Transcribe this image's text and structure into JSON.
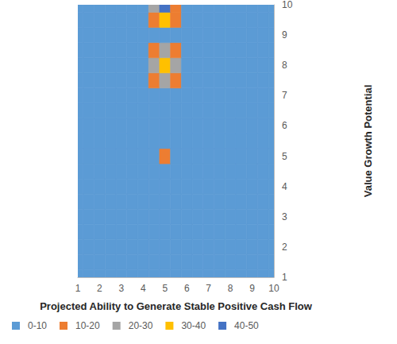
{
  "chart_data": {
    "type": "contour",
    "x_label": "Projected Ability to Generate Stable Positive Cash Flow",
    "y_label": "Value Growth Potential",
    "x": [
      1,
      1.5,
      2,
      2.5,
      3,
      3.5,
      4,
      4.5,
      5,
      5.5,
      6,
      6.5,
      7,
      7.5,
      8,
      8.5,
      9,
      9.5,
      10
    ],
    "y": [
      1,
      1.5,
      2,
      2.5,
      3,
      3.5,
      4,
      4.5,
      5,
      5.5,
      6,
      6.5,
      7,
      7.5,
      8,
      8.5,
      9,
      9.5,
      10
    ],
    "z": [
      [
        0,
        0,
        0,
        0,
        0,
        0,
        0,
        0,
        0,
        0,
        0,
        0,
        0,
        0,
        0,
        0,
        0,
        0,
        0
      ],
      [
        0,
        0,
        0,
        0,
        0,
        0,
        0,
        0,
        0,
        0,
        0,
        0,
        0,
        0,
        0,
        0,
        0,
        0,
        0
      ],
      [
        0,
        0,
        0,
        0,
        0,
        0,
        0,
        0,
        0,
        0,
        0,
        0,
        0,
        0,
        0,
        0,
        0,
        0,
        0
      ],
      [
        0,
        0,
        0,
        0,
        0,
        0,
        0,
        0,
        0,
        0,
        0,
        0,
        0,
        0,
        0,
        0,
        0,
        0,
        0
      ],
      [
        0,
        0,
        0,
        0,
        0,
        0,
        0,
        0,
        0,
        0,
        0,
        0,
        0,
        0,
        0,
        0,
        0,
        0,
        0
      ],
      [
        0,
        0,
        0,
        0,
        0,
        0,
        0,
        2,
        3,
        2,
        0,
        0,
        0,
        0,
        0,
        0,
        0,
        0,
        0
      ],
      [
        0,
        0,
        0,
        0,
        0,
        0,
        3,
        4,
        5,
        4,
        2,
        0,
        0,
        0,
        0,
        0,
        0,
        0,
        0
      ],
      [
        0,
        0,
        2,
        0,
        3,
        0,
        5,
        6,
        8,
        6,
        3,
        0,
        0,
        0,
        0,
        0,
        0,
        0,
        0
      ],
      [
        2,
        0,
        3,
        0,
        4,
        0,
        6,
        8,
        12,
        7,
        3,
        0,
        0,
        0,
        0,
        0,
        0,
        0,
        0
      ],
      [
        0,
        0,
        3,
        0,
        4,
        0,
        5,
        6,
        7,
        5,
        3,
        0,
        0,
        0,
        0,
        0,
        0,
        0,
        0
      ],
      [
        0,
        0,
        0,
        0,
        0,
        0,
        2,
        0,
        3,
        0,
        0,
        0,
        0,
        0,
        0,
        0,
        0,
        0,
        0
      ],
      [
        0,
        0,
        0,
        0,
        0,
        0,
        0,
        0,
        2,
        0,
        0,
        0,
        0,
        0,
        0,
        0,
        0,
        0,
        0
      ],
      [
        0,
        0,
        0,
        0,
        2,
        0,
        3,
        4,
        5,
        4,
        0,
        0,
        0,
        0,
        0,
        0,
        0,
        0,
        0
      ],
      [
        0,
        0,
        0,
        0,
        3,
        0,
        4,
        14,
        22,
        12,
        3,
        0,
        0,
        0,
        0,
        0,
        0,
        0,
        0
      ],
      [
        0,
        0,
        2,
        0,
        3,
        0,
        5,
        25,
        35,
        22,
        4,
        0,
        0,
        0,
        0,
        0,
        0,
        0,
        0
      ],
      [
        0,
        0,
        0,
        0,
        3,
        0,
        4,
        15,
        25,
        14,
        3,
        0,
        0,
        0,
        0,
        0,
        0,
        0,
        0
      ],
      [
        0,
        0,
        0,
        0,
        0,
        0,
        3,
        5,
        8,
        5,
        0,
        0,
        0,
        0,
        0,
        0,
        0,
        0,
        0
      ],
      [
        0,
        0,
        0,
        0,
        0,
        0,
        3,
        15,
        30,
        12,
        3,
        0,
        0,
        0,
        0,
        0,
        0,
        0,
        0
      ],
      [
        0,
        0,
        0,
        0,
        0,
        0,
        4,
        22,
        42,
        18,
        4,
        0,
        0,
        0,
        0,
        0,
        0,
        0,
        0
      ]
    ],
    "xlim": [
      1,
      10
    ],
    "ylim": [
      1,
      10
    ],
    "xticks": [
      1,
      2,
      3,
      4,
      5,
      6,
      7,
      8,
      9,
      10
    ],
    "yticks": [
      1,
      2,
      3,
      4,
      5,
      6,
      7,
      8,
      9,
      10
    ],
    "color_bins": [
      {
        "min": 0,
        "max": 10,
        "label": "0-10",
        "color": "#5b9bd5"
      },
      {
        "min": 10,
        "max": 20,
        "label": "10-20",
        "color": "#ed7d31"
      },
      {
        "min": 20,
        "max": 30,
        "label": "20-30",
        "color": "#a5a5a5"
      },
      {
        "min": 30,
        "max": 40,
        "label": "30-40",
        "color": "#ffc000"
      },
      {
        "min": 40,
        "max": 50,
        "label": "40-50",
        "color": "#4472c4"
      }
    ],
    "grid": false,
    "legend": "bottom"
  }
}
